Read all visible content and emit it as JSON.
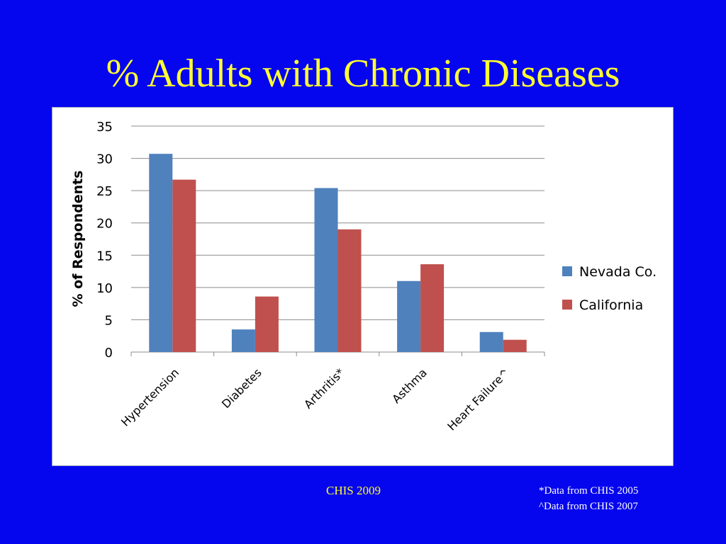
{
  "slide": {
    "title": "% Adults with Chronic Diseases",
    "source": "CHIS 2009",
    "footnotes": [
      "*Data from CHIS 2005",
      "^Data from CHIS 2007"
    ]
  },
  "chart_data": {
    "type": "bar",
    "title": "",
    "xlabel": "",
    "ylabel": "% of Respondents",
    "ylim": [
      0,
      35
    ],
    "yticks": [
      0,
      5,
      10,
      15,
      20,
      25,
      30,
      35
    ],
    "grid": true,
    "legend_position": "right",
    "categories": [
      "Hypertension",
      "Diabetes",
      "Arthritis*",
      "Asthma",
      "Heart Failure^"
    ],
    "series": [
      {
        "name": "Nevada Co.",
        "color": "#4f81bd",
        "values": [
          30.7,
          3.5,
          25.4,
          11.0,
          3.1
        ]
      },
      {
        "name": "California",
        "color": "#c0504d",
        "values": [
          26.7,
          8.6,
          19.0,
          13.6,
          1.9
        ]
      }
    ]
  }
}
